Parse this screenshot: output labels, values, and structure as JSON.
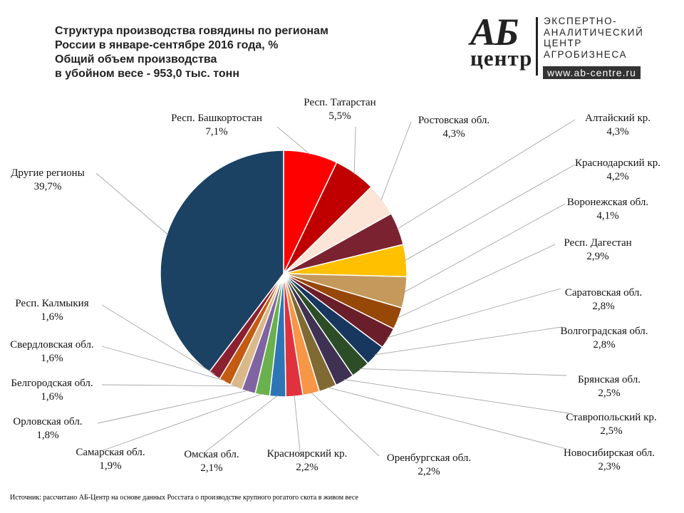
{
  "header": {
    "title_lines": [
      "Структура производства говядины по регионам",
      "России в январе-сентябре 2016 года, %",
      "Общий объем производства",
      "в убойном весе - 953,0 тыс. тонн"
    ]
  },
  "logo": {
    "ab": "АБ",
    "centr": "центр",
    "lines": [
      "ЭКСПЕРТНО-",
      "АНАЛИТИЧЕСКИЙ",
      "ЦЕНТР",
      "АГРОБИЗНЕСА"
    ],
    "url": "www.ab-centre.ru"
  },
  "footnote": "Источник: рассчитано АБ-Центр на основе данных Росстата о производстве крупного рогатого скота в живом весе",
  "chart_data": {
    "type": "pie",
    "title": "Структура производства говядины по регионам России в январе-сентябре 2016 года, %",
    "start": "12 o'clock",
    "direction": "clockwise",
    "legend": "none (data labels with leader lines)",
    "slices": [
      {
        "label": "Респ. Башкортостан",
        "value": 7.1,
        "display": "7,1%",
        "color": "#FF0000"
      },
      {
        "label": "Респ. Татарстан",
        "value": 5.5,
        "display": "5,5%",
        "color": "#C00000"
      },
      {
        "label": "Ростовская обл.",
        "value": 4.3,
        "display": "4,3%",
        "color": "#FCE4D6"
      },
      {
        "label": "Алтайский кр.",
        "value": 4.3,
        "display": "4,3%",
        "color": "#7B2230"
      },
      {
        "label": "Краснодарский кр.",
        "value": 4.2,
        "display": "4,2%",
        "color": "#FFC000"
      },
      {
        "label": "Воронежская обл.",
        "value": 4.1,
        "display": "4,1%",
        "color": "#C4995B"
      },
      {
        "label": "Респ. Дагестан",
        "value": 2.9,
        "display": "2,9%",
        "color": "#974706"
      },
      {
        "label": "Саратовская обл.",
        "value": 2.8,
        "display": "2,8%",
        "color": "#6A1E2A"
      },
      {
        "label": "Волгоградская обл.",
        "value": 2.8,
        "display": "2,8%",
        "color": "#17375E"
      },
      {
        "label": "Брянская обл.",
        "value": 2.5,
        "display": "2,5%",
        "color": "#2C4D25"
      },
      {
        "label": "Ставропольский кр.",
        "value": 2.5,
        "display": "2,5%",
        "color": "#3F3151"
      },
      {
        "label": "Новосибирская обл.",
        "value": 2.3,
        "display": "2,3%",
        "color": "#7F6A33"
      },
      {
        "label": "Оренбургская обл.",
        "value": 2.2,
        "display": "2,2%",
        "color": "#F79646"
      },
      {
        "label": "Красноярский кр.",
        "value": 2.2,
        "display": "2,2%",
        "color": "#E0323D"
      },
      {
        "label": "Омская обл.",
        "value": 2.1,
        "display": "2,1%",
        "color": "#2E75B6"
      },
      {
        "label": "Самарская обл.",
        "value": 1.9,
        "display": "1,9%",
        "color": "#6AB04C"
      },
      {
        "label": "Орловская обл.",
        "value": 1.8,
        "display": "1,8%",
        "color": "#8064A2"
      },
      {
        "label": "Белгородская обл.",
        "value": 1.6,
        "display": "1,6%",
        "color": "#D9B98A"
      },
      {
        "label": "Свердловская обл.",
        "value": 1.6,
        "display": "1,6%",
        "color": "#C55A11"
      },
      {
        "label": "Респ. Калмыкия",
        "value": 1.6,
        "display": "1,6%",
        "color": "#8B2030"
      },
      {
        "label": "Другие регионы",
        "value": 39.7,
        "display": "39,7%",
        "color": "#1B4263"
      }
    ]
  }
}
